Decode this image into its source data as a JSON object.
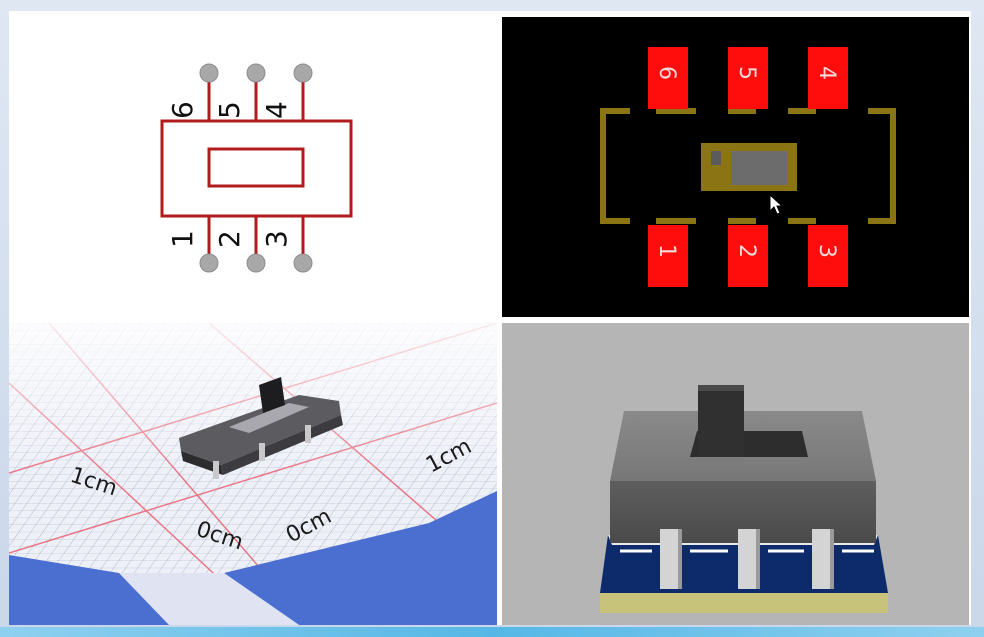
{
  "schematic": {
    "top_pins": [
      "6",
      "5",
      "4"
    ],
    "bottom_pins": [
      "1",
      "2",
      "3"
    ],
    "colors": {
      "body": "#b01c1c",
      "pin_dot": "#a8a8a8"
    }
  },
  "footprint": {
    "top_pads": [
      "6",
      "5",
      "4"
    ],
    "bottom_pads": [
      "1",
      "2",
      "3"
    ],
    "colors": {
      "pad": "#ff0d0d",
      "silkscreen": "#8a7414",
      "pad_text": "#f6d6d6"
    }
  },
  "photo": {
    "scale_labels": {
      "left_top": "1cm",
      "right_top": "1cm",
      "left_zero": "0cm",
      "right_zero": "0cm"
    }
  }
}
